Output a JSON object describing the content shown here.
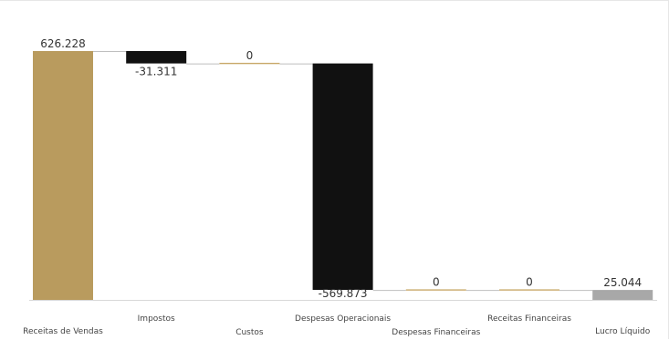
{
  "chart_data": {
    "type": "waterfall",
    "title": "",
    "xlabel": "",
    "ylabel": "",
    "categories": [
      "Receitas de Vendas",
      "Impostos",
      "Custos",
      "Despesas Operacionais",
      "Despesas Financeiras",
      "Receitas Financeiras",
      "Lucro Líquido"
    ],
    "values": [
      626228,
      -31311,
      0,
      -569873,
      0,
      0,
      25044
    ],
    "value_labels": [
      "626.228",
      "-31.311",
      "0",
      "-569.873",
      "0",
      "0",
      "25.044"
    ],
    "kinds": [
      "increase",
      "decrease",
      "zero",
      "decrease",
      "zero",
      "zero",
      "total"
    ],
    "ylim": [
      0,
      626228
    ],
    "grid": false,
    "colors": {
      "increase": "#b99b5e",
      "decrease": "#111111",
      "zero": "#c9a96a",
      "total": "#a8a8a8",
      "connector": "#bfbfbf",
      "axis": "#d9d9d9"
    }
  }
}
